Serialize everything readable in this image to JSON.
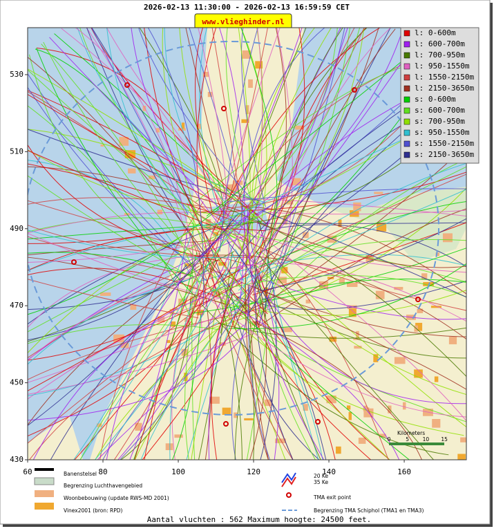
{
  "header": {
    "title": "2026-02-13 11:30:00 - 2026-02-13 16:59:59 CET",
    "site": "www.vlieghinder.nl"
  },
  "map": {
    "xlim": [
      60,
      176.5
    ],
    "ylim": [
      430,
      542.2
    ],
    "xticks": [
      60,
      80,
      100,
      120,
      140,
      160
    ],
    "yticks": [
      430,
      450,
      470,
      490,
      510,
      530
    ]
  },
  "legend": [
    {
      "label": "l: 0-600m",
      "color": "#e00000"
    },
    {
      "label": "l: 600-700m",
      "color": "#a020f0"
    },
    {
      "label": "l: 700-950m",
      "color": "#4a7a00"
    },
    {
      "label": "l: 950-1550m",
      "color": "#e060c0"
    },
    {
      "label": "l: 1550-2150m",
      "color": "#d04040"
    },
    {
      "label": "l: 2150-3650m",
      "color": "#a03020"
    },
    {
      "label": "s: 0-600m",
      "color": "#00d000"
    },
    {
      "label": "s: 600-700m",
      "color": "#60e020"
    },
    {
      "label": "s: 700-950m",
      "color": "#90e000"
    },
    {
      "label": "s: 950-1550m",
      "color": "#30c0d0"
    },
    {
      "label": "s: 1550-2150m",
      "color": "#5050d0"
    },
    {
      "label": "s: 2150-3650m",
      "color": "#303090"
    }
  ],
  "key": {
    "runways": "Banenstelsel",
    "airport": "Begrenzing Luchthavengebied",
    "housing": "Woonbebouwing (update RWS-MD 2001)",
    "vinex": "Vinex2001 (bron: RPD)",
    "ke20": "20 Ke",
    "ke35": "35 Ke",
    "tma_exit": "TMA exit point",
    "tma_border": "Begrenzing TMA Schiphol  (TMA1 en TMA3)"
  },
  "scale": {
    "title": "Kilometers",
    "labels": [
      "0",
      "5",
      "10",
      "15"
    ]
  },
  "footer": "Aantal vluchten : 562 Maximum hoogte: 24500 feet."
}
